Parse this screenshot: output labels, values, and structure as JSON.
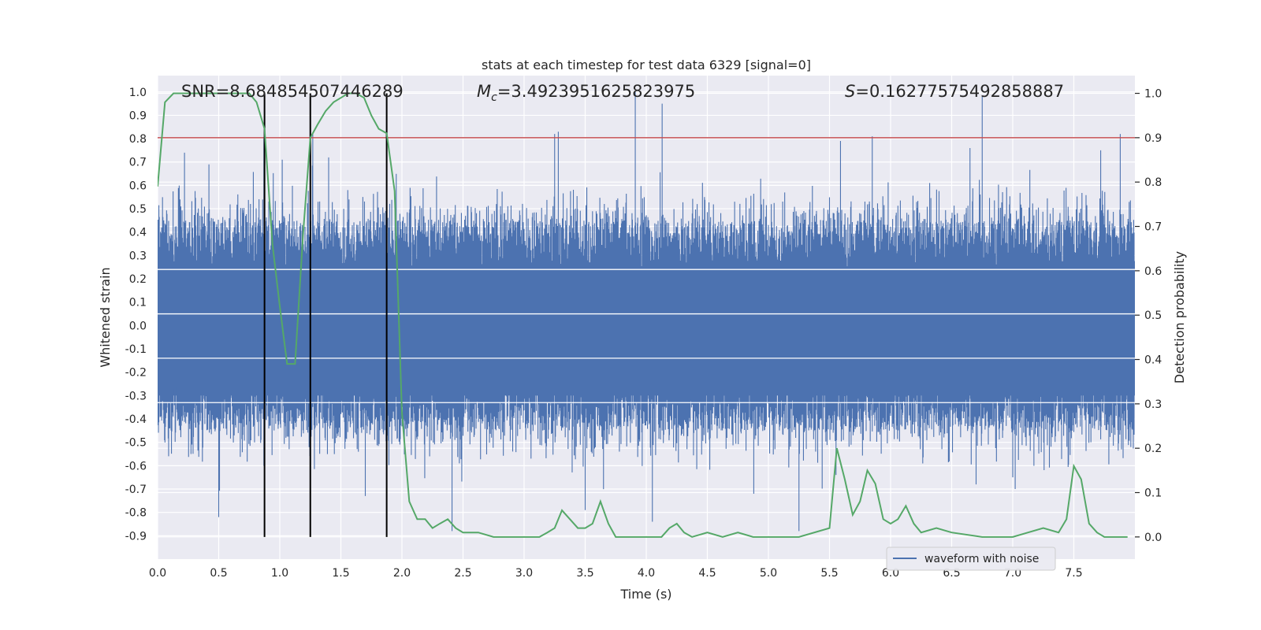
{
  "chart_data": {
    "type": "line",
    "title": "stats at each timestep for test data 6329 [signal=0]",
    "xlabel": "Time (s)",
    "ylabel": "Whitened strain",
    "ylabel_right": "Detection probability",
    "xlim": [
      0.0,
      8.0
    ],
    "ylim": [
      -1.0,
      1.07
    ],
    "ylim_right": [
      -0.05,
      1.04
    ],
    "x_ticks": [
      "0.0",
      "0.5",
      "1.0",
      "1.5",
      "2.0",
      "2.5",
      "3.0",
      "3.5",
      "4.0",
      "4.5",
      "5.0",
      "5.5",
      "6.0",
      "6.5",
      "7.0",
      "7.5"
    ],
    "x_tick_values": [
      0.0,
      0.5,
      1.0,
      1.5,
      2.0,
      2.5,
      3.0,
      3.5,
      4.0,
      4.5,
      5.0,
      5.5,
      6.0,
      6.5,
      7.0,
      7.5
    ],
    "y_ticks": [
      "1.0",
      "0.9",
      "0.8",
      "0.7",
      "0.6",
      "0.5",
      "0.4",
      "0.3",
      "0.2",
      "0.1",
      "0.0",
      "-0.1",
      "-0.2",
      "-0.3",
      "-0.4",
      "-0.5",
      "-0.6",
      "-0.7",
      "-0.8",
      "-0.9"
    ],
    "y_tick_values": [
      1.0,
      0.9,
      0.8,
      0.7,
      0.6,
      0.5,
      0.4,
      0.3,
      0.2,
      0.1,
      0.0,
      -0.1,
      -0.2,
      -0.3,
      -0.4,
      -0.5,
      -0.6,
      -0.7,
      -0.8,
      -0.9
    ],
    "y_right_ticks": [
      "1.0",
      "0.9",
      "0.8",
      "0.7",
      "0.6",
      "0.5",
      "0.4",
      "0.3",
      "0.2",
      "0.1",
      "0.0"
    ],
    "y_right_tick_values": [
      1.0,
      0.9,
      0.8,
      0.7,
      0.6,
      0.5,
      0.4,
      0.3,
      0.2,
      0.1,
      0.0
    ],
    "annotations": {
      "snr": "SNR=8.684854507446289",
      "mc_symbol": "M",
      "mc_subscript": "c",
      "mc_value": "=3.4923951625823975",
      "s_symbol": "S",
      "s_value": "=0.16277575492858887"
    },
    "legend": {
      "label": "waveform with noise",
      "placement": "lower-right"
    },
    "threshold": {
      "value": 0.9,
      "axis": "right",
      "color": "#c44e52"
    },
    "vertical_lines": {
      "x": [
        0.875,
        1.25,
        1.875
      ],
      "color": "#000000"
    },
    "waveform": {
      "name": "waveform with noise",
      "color": "#4c72b0",
      "duration_s": 8.0,
      "typical_range": [
        -0.45,
        0.45
      ],
      "peaks": [
        {
          "x": 0.05,
          "y": 0.45
        },
        {
          "x": 0.22,
          "y": 0.74
        },
        {
          "x": 0.42,
          "y": 0.69
        },
        {
          "x": 0.87,
          "y": 0.8
        },
        {
          "x": 1.02,
          "y": 0.71
        },
        {
          "x": 1.27,
          "y": 0.82
        },
        {
          "x": 1.4,
          "y": 0.72
        },
        {
          "x": 3.25,
          "y": 0.82
        },
        {
          "x": 3.28,
          "y": 0.83
        },
        {
          "x": 3.91,
          "y": 1.0
        },
        {
          "x": 4.13,
          "y": 0.95
        },
        {
          "x": 5.59,
          "y": 0.79
        },
        {
          "x": 5.85,
          "y": 0.81
        },
        {
          "x": 6.65,
          "y": 0.76
        },
        {
          "x": 6.75,
          "y": 0.98
        },
        {
          "x": 7.72,
          "y": 0.75
        },
        {
          "x": 7.88,
          "y": 0.82
        }
      ],
      "troughs": [
        {
          "x": 0.5,
          "y": -0.82
        },
        {
          "x": 1.25,
          "y": -0.8
        },
        {
          "x": 1.7,
          "y": -0.73
        },
        {
          "x": 2.41,
          "y": -0.88
        },
        {
          "x": 3.5,
          "y": -0.79
        },
        {
          "x": 4.05,
          "y": -0.84
        },
        {
          "x": 4.88,
          "y": -0.72
        },
        {
          "x": 5.25,
          "y": -0.88
        },
        {
          "x": 6.7,
          "y": -0.68
        },
        {
          "x": 7.02,
          "y": -0.7
        }
      ]
    },
    "detection_probability": {
      "name": "",
      "color": "#55a868",
      "axis": "right",
      "x": [
        0.0,
        0.06,
        0.13,
        0.25,
        0.5,
        0.75,
        0.81,
        0.875,
        0.94,
        1.0,
        1.06,
        1.125,
        1.19,
        1.25,
        1.31,
        1.375,
        1.44,
        1.5,
        1.56,
        1.625,
        1.69,
        1.75,
        1.81,
        1.875,
        1.94,
        2.0,
        2.06,
        2.125,
        2.19,
        2.25,
        2.31,
        2.375,
        2.44,
        2.5,
        2.625,
        2.75,
        3.0,
        3.125,
        3.19,
        3.25,
        3.31,
        3.375,
        3.44,
        3.5,
        3.56,
        3.625,
        3.69,
        3.75,
        3.875,
        4.0,
        4.125,
        4.19,
        4.25,
        4.31,
        4.375,
        4.5,
        4.625,
        4.75,
        4.875,
        5.0,
        5.25,
        5.5,
        5.56,
        5.625,
        5.69,
        5.75,
        5.81,
        5.875,
        5.94,
        6.0,
        6.06,
        6.125,
        6.19,
        6.25,
        6.375,
        6.5,
        6.75,
        7.0,
        7.125,
        7.25,
        7.375,
        7.44,
        7.5,
        7.56,
        7.625,
        7.69,
        7.75,
        7.875,
        7.94
      ],
      "y": [
        0.79,
        0.98,
        1.0,
        1.0,
        1.0,
        1.0,
        0.98,
        0.92,
        0.66,
        0.52,
        0.39,
        0.39,
        0.68,
        0.9,
        0.93,
        0.96,
        0.98,
        0.99,
        1.0,
        1.0,
        0.99,
        0.95,
        0.92,
        0.91,
        0.78,
        0.28,
        0.08,
        0.04,
        0.04,
        0.02,
        0.03,
        0.04,
        0.02,
        0.01,
        0.01,
        0.0,
        0.0,
        0.0,
        0.01,
        0.02,
        0.06,
        0.04,
        0.02,
        0.02,
        0.03,
        0.08,
        0.03,
        0.0,
        0.0,
        0.0,
        0.0,
        0.02,
        0.03,
        0.01,
        0.0,
        0.01,
        0.0,
        0.01,
        0.0,
        0.0,
        0.0,
        0.02,
        0.2,
        0.13,
        0.05,
        0.08,
        0.15,
        0.12,
        0.04,
        0.03,
        0.04,
        0.07,
        0.03,
        0.01,
        0.02,
        0.01,
        0.0,
        0.0,
        0.01,
        0.02,
        0.01,
        0.04,
        0.16,
        0.13,
        0.03,
        0.01,
        0.0,
        0.0,
        0.0
      ]
    }
  }
}
